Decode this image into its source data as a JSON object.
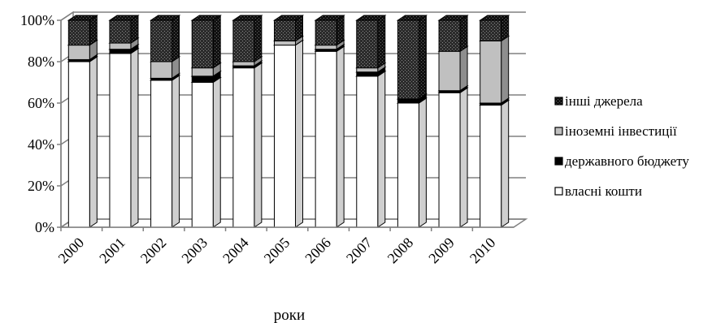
{
  "chart_data": {
    "type": "bar",
    "stacked": true,
    "percent_stacked": true,
    "three_d": true,
    "categories": [
      "2000",
      "2001",
      "2002",
      "2003",
      "2004",
      "2005",
      "2006",
      "2007",
      "2008",
      "2009",
      "2010"
    ],
    "series": [
      {
        "name": "власні кошти",
        "values": [
          80,
          84,
          71,
          70,
          77,
          88,
          85,
          73,
          60,
          65,
          59
        ],
        "color": "#ffffff"
      },
      {
        "name": "державного бюджету",
        "values": [
          1,
          2,
          1,
          3,
          1,
          0,
          1,
          2,
          2,
          1,
          1
        ],
        "color": "#000000"
      },
      {
        "name": "іноземні інвестиції",
        "values": [
          7,
          3,
          8,
          4,
          2,
          2,
          2,
          2,
          0,
          19,
          30
        ],
        "color": "#c0c0c0"
      },
      {
        "name": "інші джерела",
        "values": [
          12,
          11,
          20,
          23,
          20,
          10,
          12,
          23,
          38,
          15,
          10
        ],
        "color": "#3a3a3a"
      }
    ],
    "y_ticks": [
      "0%",
      "20%",
      "40%",
      "60%",
      "80%",
      "100%"
    ],
    "ylim": [
      0,
      100
    ],
    "xlabel": "роки",
    "ylabel": "",
    "grid": true,
    "legend_position": "right",
    "legend_order": [
      "інші джерела",
      "іноземні інвестиції",
      "державного бюджету",
      "власні кошти"
    ]
  }
}
